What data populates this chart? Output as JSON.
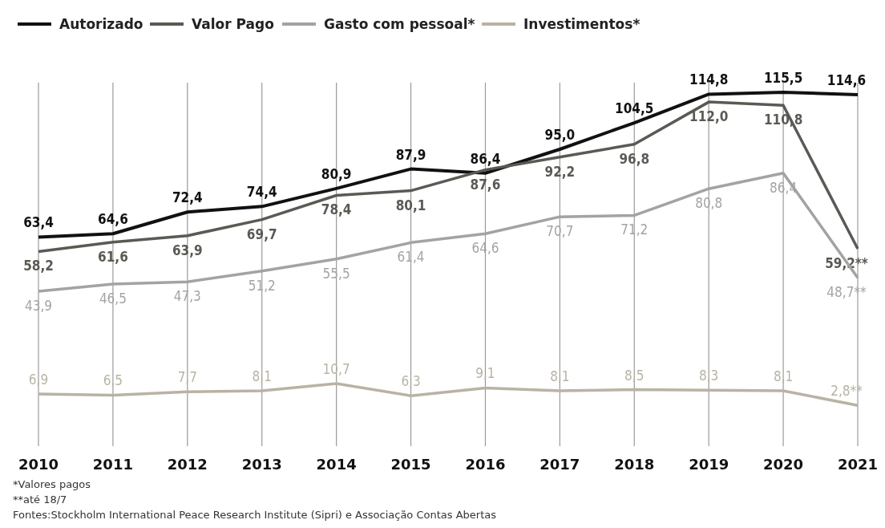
{
  "chart_data": {
    "type": "line",
    "categories": [
      "2010",
      "2011",
      "2012",
      "2013",
      "2014",
      "2015",
      "2016",
      "2017",
      "2018",
      "2019",
      "2020",
      "2021"
    ],
    "series": [
      {
        "name": "Autorizado",
        "color": "#111111",
        "values": [
          63.4,
          64.6,
          72.4,
          74.4,
          80.9,
          87.9,
          86.4,
          95.0,
          104.5,
          114.8,
          115.5,
          114.6
        ],
        "value_labels": [
          "63,4",
          "64,6",
          "72,4",
          "74,4",
          "80,9",
          "87,9",
          "86,4",
          "95,0",
          "104,5",
          "114,8",
          "115,5",
          "114,6"
        ]
      },
      {
        "name": "Valor Pago",
        "color": "#5a5a55",
        "values": [
          58.2,
          61.6,
          63.9,
          69.7,
          78.4,
          80.1,
          87.6,
          92.2,
          96.8,
          112.0,
          110.8,
          59.2
        ],
        "value_labels": [
          "58,2",
          "61,6",
          "63,9",
          "69,7",
          "78,4",
          "80,1",
          "87,6",
          "92,2",
          "96,8",
          "112,0",
          "110,8",
          "59,2**"
        ]
      },
      {
        "name": "Gasto com pessoal*",
        "color": "#a3a3a3",
        "values": [
          43.9,
          46.5,
          47.3,
          51.2,
          55.5,
          61.4,
          64.6,
          70.7,
          71.2,
          80.8,
          86.4,
          48.7
        ],
        "value_labels": [
          "43,9",
          "46,5",
          "47,3",
          "51,2",
          "55,5",
          "61,4",
          "64,6",
          "70,7",
          "71,2",
          "80,8",
          "86,4",
          "48,7**"
        ]
      },
      {
        "name": "Investimentos*",
        "color": "#b8b3a4",
        "values": [
          6.9,
          6.5,
          7.7,
          8.1,
          10.7,
          6.3,
          9.1,
          8.1,
          8.5,
          8.3,
          8.1,
          2.8
        ],
        "value_labels": [
          "6,9",
          "6,5",
          "7,7",
          "8,1",
          "10,7",
          "6,3",
          "9,1",
          "8,1",
          "8,5",
          "8,3",
          "8,1",
          "2,8**"
        ]
      }
    ],
    "grid": "x",
    "legend": "top left",
    "marker": "none",
    "line_style": "solid",
    "annotations": [
      "*Valores pagos",
      "**até 18/7",
      "Fontes:Stockholm International Peace Research Institute (Sipri) e Associação Contas Abertas"
    ]
  }
}
